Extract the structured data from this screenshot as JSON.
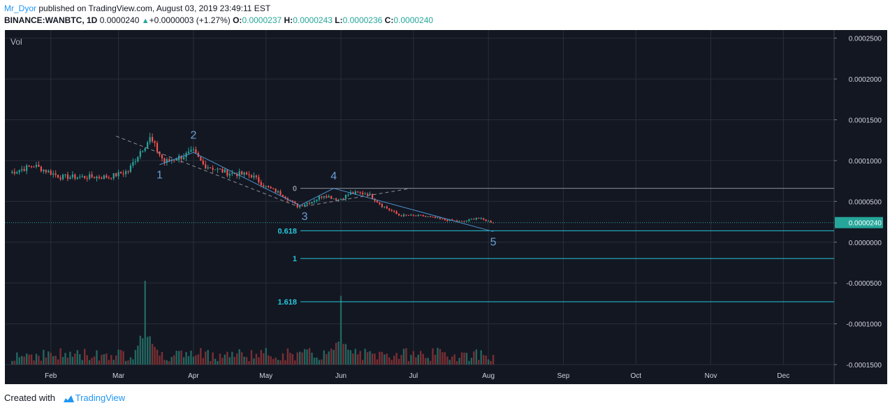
{
  "header": {
    "author": "Mr_Dyor",
    "published_text": "published on TradingView.com, August 03, 2019 23:49:11 EST",
    "symbol": "BINANCE:WANBTC, 1D",
    "last_price": "0.0000240",
    "change_text": "+0.0000003 (+1.27%)",
    "open_label": "O:",
    "open": "0.0000237",
    "high_label": "H:",
    "high": "0.0000243",
    "low_label": "L:",
    "low": "0.0000236",
    "close_label": "C:",
    "close": "0.0000240",
    "up_arrow_icon": "triangle-up-icon"
  },
  "footer": {
    "created_with": "Created with",
    "brand": "TradingView",
    "logo_icon": "tradingview-cloud-icon"
  },
  "colors": {
    "background": "#131722",
    "up": "#26a69a",
    "down": "#ef5350",
    "drawing": "#4a90c8",
    "fib_level": "#26c6da",
    "price_tag": "#26a69a"
  },
  "chart_data": {
    "type": "candlestick",
    "pane_label": "Vol",
    "x_tick_labels": [
      "Feb",
      "Mar",
      "Apr",
      "May",
      "Jun",
      "Jul",
      "Aug",
      "Sep",
      "Oct",
      "Nov",
      "Dec"
    ],
    "y_tick_labels": [
      "0.0002500",
      "0.0002000",
      "0.0001500",
      "0.0001000",
      "0.0000500",
      "0.0000000",
      "-0.0000500",
      "-0.0001000",
      "-0.0001500"
    ],
    "ylim": [
      -0.00015,
      0.00026
    ],
    "grid": true,
    "current_price": "0.0000240",
    "approx_close_path": [
      {
        "date": "2019-01-15",
        "close": 8.5e-05
      },
      {
        "date": "2019-01-25",
        "close": 9.4e-05
      },
      {
        "date": "2019-02-05",
        "close": 8e-05
      },
      {
        "date": "2019-02-25",
        "close": 8e-05
      },
      {
        "date": "2019-03-05",
        "close": 8.7e-05
      },
      {
        "date": "2019-03-10",
        "close": 0.000112
      },
      {
        "date": "2019-03-14",
        "close": 0.000127
      },
      {
        "date": "2019-03-20",
        "close": 9.8e-05
      },
      {
        "date": "2019-03-27",
        "close": 0.000105
      },
      {
        "date": "2019-04-01",
        "close": 0.00011
      },
      {
        "date": "2019-04-05",
        "close": 9.5e-05
      },
      {
        "date": "2019-04-15",
        "close": 8.5e-05
      },
      {
        "date": "2019-04-25",
        "close": 8.2e-05
      },
      {
        "date": "2019-05-01",
        "close": 6.8e-05
      },
      {
        "date": "2019-05-08",
        "close": 5.8e-05
      },
      {
        "date": "2019-05-14",
        "close": 4.4e-05
      },
      {
        "date": "2019-05-20",
        "close": 5e-05
      },
      {
        "date": "2019-05-25",
        "close": 5.8e-05
      },
      {
        "date": "2019-05-31",
        "close": 5.2e-05
      },
      {
        "date": "2019-06-05",
        "close": 6e-05
      },
      {
        "date": "2019-06-12",
        "close": 6e-05
      },
      {
        "date": "2019-06-18",
        "close": 4.5e-05
      },
      {
        "date": "2019-06-25",
        "close": 3.3e-05
      },
      {
        "date": "2019-07-05",
        "close": 3.2e-05
      },
      {
        "date": "2019-07-15",
        "close": 2.7e-05
      },
      {
        "date": "2019-07-22",
        "close": 2.5e-05
      },
      {
        "date": "2019-07-27",
        "close": 3e-05
      },
      {
        "date": "2019-08-03",
        "close": 2.4e-05
      }
    ],
    "volume_spikes": [
      {
        "date": "2019-03-12",
        "relative": 1.0
      },
      {
        "date": "2019-06-01",
        "relative": 0.82
      }
    ],
    "fib_levels": [
      {
        "label": "0",
        "price": 6.6e-05
      },
      {
        "label": "0.618",
        "price": 1.4e-05
      },
      {
        "label": "1",
        "price": -2e-05
      },
      {
        "label": "1.618",
        "price": -7.3e-05
      }
    ],
    "wave_labels": [
      {
        "label": "1",
        "date": "2019-03-18",
        "price": 7.8e-05
      },
      {
        "label": "2",
        "date": "2019-04-01",
        "price": 0.000127
      },
      {
        "label": "3",
        "date": "2019-05-17",
        "price": 2.7e-05
      },
      {
        "label": "4",
        "date": "2019-05-29",
        "price": 7.7e-05
      },
      {
        "label": "5",
        "date": "2019-08-03",
        "price": -4e-06
      }
    ]
  }
}
